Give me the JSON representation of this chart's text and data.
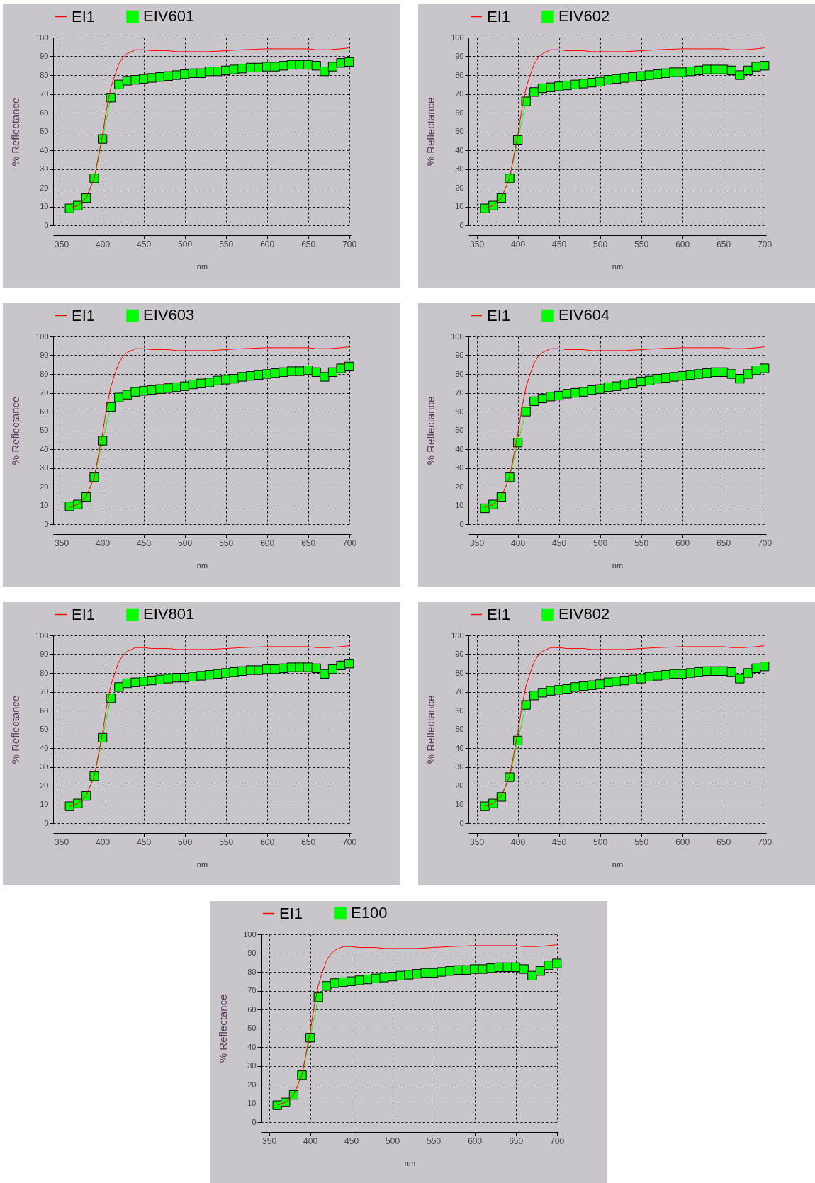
{
  "chart_data": [
    {
      "type": "line",
      "xlabel": "nm",
      "ylabel": "% Reflectance",
      "xlim": [
        340,
        702
      ],
      "xticks": [
        350,
        400,
        450,
        500,
        550,
        600,
        650,
        700
      ],
      "ylim": [
        0,
        100
      ],
      "yticks": [
        0,
        10,
        20,
        30,
        40,
        50,
        60,
        70,
        80,
        90,
        100
      ],
      "grid": true,
      "legend": "top",
      "x": [
        360,
        370,
        380,
        390,
        400,
        410,
        420,
        430,
        440,
        450,
        460,
        470,
        480,
        490,
        500,
        510,
        520,
        530,
        540,
        550,
        560,
        570,
        580,
        590,
        600,
        610,
        620,
        630,
        640,
        650,
        660,
        670,
        680,
        690,
        700
      ],
      "series": [
        {
          "name": "EI1",
          "color": "#ff0000",
          "marker": "none",
          "x": [
            360,
            370,
            380,
            390,
            400,
            405,
            410,
            415,
            420,
            425,
            430,
            440,
            450,
            460,
            480,
            490,
            500,
            530,
            550,
            570,
            600,
            650,
            660,
            675,
            690,
            700
          ],
          "values": [
            9,
            10.5,
            14.5,
            25,
            48,
            62,
            73,
            80,
            86,
            89.5,
            91.5,
            93.5,
            93.5,
            93,
            93,
            92.5,
            92.5,
            92.5,
            93,
            93.5,
            94,
            94,
            93.5,
            93.5,
            94,
            94.5
          ]
        },
        {
          "name": "EIV601",
          "color": "#00ff00",
          "marker": "square",
          "values": [
            9,
            10.5,
            14.5,
            25,
            46,
            68,
            75,
            77,
            77.5,
            78,
            78.5,
            79,
            79.5,
            80,
            80.5,
            81,
            81,
            82,
            82,
            82.5,
            83,
            83.5,
            84,
            84,
            84.5,
            84.5,
            85,
            85.5,
            85.5,
            85.5,
            85,
            82,
            84.5,
            86.5,
            87
          ]
        }
      ]
    },
    {
      "type": "line",
      "xlabel": "nm",
      "ylabel": "% Reflectance",
      "xlim": [
        340,
        702
      ],
      "xticks": [
        350,
        400,
        450,
        500,
        550,
        600,
        650,
        700
      ],
      "ylim": [
        0,
        100
      ],
      "yticks": [
        0,
        10,
        20,
        30,
        40,
        50,
        60,
        70,
        80,
        90,
        100
      ],
      "grid": true,
      "legend": "top",
      "x": [
        360,
        370,
        380,
        390,
        400,
        410,
        420,
        430,
        440,
        450,
        460,
        470,
        480,
        490,
        500,
        510,
        520,
        530,
        540,
        550,
        560,
        570,
        580,
        590,
        600,
        610,
        620,
        630,
        640,
        650,
        660,
        670,
        680,
        690,
        700
      ],
      "series": [
        {
          "name": "EI1",
          "color": "#ff0000",
          "marker": "none",
          "x": [
            360,
            370,
            380,
            390,
            400,
            405,
            410,
            415,
            420,
            425,
            430,
            440,
            450,
            460,
            480,
            490,
            500,
            530,
            550,
            570,
            600,
            650,
            660,
            675,
            690,
            700
          ],
          "values": [
            9,
            10.5,
            14.5,
            25,
            48,
            62,
            73,
            80,
            86,
            89.5,
            91.5,
            93.5,
            93.5,
            93,
            93,
            92.5,
            92.5,
            92.5,
            93,
            93.5,
            94,
            94,
            93.5,
            93.5,
            94,
            94.5
          ]
        },
        {
          "name": "EIV602",
          "color": "#00ff00",
          "marker": "square",
          "values": [
            9,
            10.5,
            14.5,
            25,
            45.5,
            66,
            71,
            73,
            73.5,
            74,
            74.5,
            75,
            75.5,
            76,
            76.5,
            77.5,
            78,
            78.5,
            79,
            79.5,
            80,
            80.5,
            81,
            81.5,
            81.5,
            82,
            82.5,
            83,
            83,
            83,
            82.5,
            80,
            82.5,
            84.5,
            85
          ]
        }
      ]
    },
    {
      "type": "line",
      "xlabel": "nm",
      "ylabel": "% Reflectance",
      "xlim": [
        340,
        702
      ],
      "xticks": [
        350,
        400,
        450,
        500,
        550,
        600,
        650,
        700
      ],
      "ylim": [
        0,
        100
      ],
      "yticks": [
        0,
        10,
        20,
        30,
        40,
        50,
        60,
        70,
        80,
        90,
        100
      ],
      "grid": true,
      "legend": "top",
      "x": [
        360,
        370,
        380,
        390,
        400,
        410,
        420,
        430,
        440,
        450,
        460,
        470,
        480,
        490,
        500,
        510,
        520,
        530,
        540,
        550,
        560,
        570,
        580,
        590,
        600,
        610,
        620,
        630,
        640,
        650,
        660,
        670,
        680,
        690,
        700
      ],
      "series": [
        {
          "name": "EI1",
          "color": "#ff0000",
          "marker": "none",
          "x": [
            360,
            370,
            380,
            390,
            400,
            405,
            410,
            415,
            420,
            425,
            430,
            440,
            450,
            460,
            480,
            490,
            500,
            530,
            550,
            570,
            600,
            650,
            660,
            675,
            690,
            700
          ],
          "values": [
            9,
            10.5,
            14.5,
            25,
            48,
            62,
            73,
            80,
            86,
            89.5,
            91.5,
            93.5,
            93.5,
            93,
            93,
            92.5,
            92.5,
            92.5,
            93,
            93.5,
            94,
            94,
            93.5,
            93.5,
            94,
            94.5
          ]
        },
        {
          "name": "EIV603",
          "color": "#00ff00",
          "marker": "square",
          "values": [
            9.5,
            10.5,
            14.5,
            25,
            44.5,
            62.5,
            67.5,
            69,
            70.5,
            71,
            71.5,
            72,
            72.5,
            73,
            73.5,
            74.5,
            75,
            75.5,
            76.5,
            77,
            77.5,
            78.5,
            79,
            79.5,
            80,
            80.5,
            81,
            81.5,
            81.5,
            82,
            81,
            78.5,
            81,
            83,
            84
          ]
        }
      ]
    },
    {
      "type": "line",
      "xlabel": "nm",
      "ylabel": "% Reflectance",
      "xlim": [
        340,
        702
      ],
      "xticks": [
        350,
        400,
        450,
        500,
        550,
        600,
        650,
        700
      ],
      "ylim": [
        0,
        100
      ],
      "yticks": [
        0,
        10,
        20,
        30,
        40,
        50,
        60,
        70,
        80,
        90,
        100
      ],
      "grid": true,
      "legend": "top",
      "x": [
        360,
        370,
        380,
        390,
        400,
        410,
        420,
        430,
        440,
        450,
        460,
        470,
        480,
        490,
        500,
        510,
        520,
        530,
        540,
        550,
        560,
        570,
        580,
        590,
        600,
        610,
        620,
        630,
        640,
        650,
        660,
        670,
        680,
        690,
        700
      ],
      "series": [
        {
          "name": "EI1",
          "color": "#ff0000",
          "marker": "none",
          "x": [
            360,
            370,
            380,
            390,
            400,
            405,
            410,
            415,
            420,
            425,
            430,
            440,
            450,
            460,
            480,
            490,
            500,
            530,
            550,
            570,
            600,
            650,
            660,
            675,
            690,
            700
          ],
          "values": [
            9,
            10.5,
            14.5,
            25,
            48,
            62,
            73,
            80,
            86,
            89.5,
            91.5,
            93.5,
            93.5,
            93,
            93,
            92.5,
            92.5,
            92.5,
            93,
            93.5,
            94,
            94,
            93.5,
            93.5,
            94,
            94.5
          ]
        },
        {
          "name": "EIV604",
          "color": "#00ff00",
          "marker": "square",
          "values": [
            8.5,
            10.5,
            14.5,
            25,
            43.5,
            60,
            65.5,
            67,
            68,
            68.5,
            69.5,
            70,
            70.5,
            71.5,
            72,
            73,
            73.5,
            74.5,
            75,
            76,
            76.5,
            77.5,
            78,
            78.5,
            79,
            79.5,
            80,
            80.5,
            81,
            81,
            80,
            77.5,
            80,
            82,
            83
          ]
        }
      ]
    },
    {
      "type": "line",
      "xlabel": "nm",
      "ylabel": "% Reflectance",
      "xlim": [
        340,
        702
      ],
      "xticks": [
        350,
        400,
        450,
        500,
        550,
        600,
        650,
        700
      ],
      "ylim": [
        0,
        100
      ],
      "yticks": [
        0,
        10,
        20,
        30,
        40,
        50,
        60,
        70,
        80,
        90,
        100
      ],
      "grid": true,
      "legend": "top",
      "x": [
        360,
        370,
        380,
        390,
        400,
        410,
        420,
        430,
        440,
        450,
        460,
        470,
        480,
        490,
        500,
        510,
        520,
        530,
        540,
        550,
        560,
        570,
        580,
        590,
        600,
        610,
        620,
        630,
        640,
        650,
        660,
        670,
        680,
        690,
        700
      ],
      "series": [
        {
          "name": "EI1",
          "color": "#ff0000",
          "marker": "none",
          "x": [
            360,
            370,
            380,
            390,
            400,
            405,
            410,
            415,
            420,
            425,
            430,
            440,
            450,
            460,
            480,
            490,
            500,
            530,
            550,
            570,
            600,
            650,
            660,
            675,
            690,
            700
          ],
          "values": [
            9,
            10.5,
            14.5,
            25,
            48,
            62,
            73,
            80,
            86,
            89.5,
            91.5,
            93.5,
            93.5,
            93,
            93,
            92.5,
            92.5,
            92.5,
            93,
            93.5,
            94,
            94,
            93.5,
            93.5,
            94,
            94.5
          ]
        },
        {
          "name": "EIV801",
          "color": "#00ff00",
          "marker": "square",
          "values": [
            9,
            10.5,
            14.5,
            25,
            45.5,
            66.5,
            72.5,
            74.5,
            75,
            75.5,
            76,
            76.5,
            77,
            77.5,
            77.5,
            78,
            78.5,
            79,
            79.5,
            80,
            80.5,
            81,
            81.5,
            81.5,
            82,
            82,
            82.5,
            83,
            83,
            83,
            82.5,
            79.5,
            82,
            84,
            85
          ]
        }
      ]
    },
    {
      "type": "line",
      "xlabel": "nm",
      "ylabel": "% Reflectance",
      "xlim": [
        340,
        702
      ],
      "xticks": [
        350,
        400,
        450,
        500,
        550,
        600,
        650,
        700
      ],
      "ylim": [
        0,
        100
      ],
      "yticks": [
        0,
        10,
        20,
        30,
        40,
        50,
        60,
        70,
        80,
        90,
        100
      ],
      "grid": true,
      "legend": "top",
      "x": [
        360,
        370,
        380,
        390,
        400,
        410,
        420,
        430,
        440,
        450,
        460,
        470,
        480,
        490,
        500,
        510,
        520,
        530,
        540,
        550,
        560,
        570,
        580,
        590,
        600,
        610,
        620,
        630,
        640,
        650,
        660,
        670,
        680,
        690,
        700
      ],
      "series": [
        {
          "name": "EI1",
          "color": "#ff0000",
          "marker": "none",
          "x": [
            360,
            370,
            380,
            390,
            400,
            405,
            410,
            415,
            420,
            425,
            430,
            440,
            450,
            460,
            480,
            490,
            500,
            530,
            550,
            570,
            600,
            650,
            660,
            675,
            690,
            700
          ],
          "values": [
            9,
            10.5,
            14.5,
            25,
            48,
            62,
            73,
            80,
            86,
            89.5,
            91.5,
            93.5,
            93.5,
            93,
            93,
            92.5,
            92.5,
            92.5,
            93,
            93.5,
            94,
            94,
            93.5,
            93.5,
            94,
            94.5
          ]
        },
        {
          "name": "EIV802",
          "color": "#00ff00",
          "marker": "square",
          "values": [
            9,
            10.5,
            14,
            24.5,
            44,
            63,
            68,
            69.5,
            70.5,
            71,
            71.5,
            72.5,
            73,
            73.5,
            74,
            75,
            75.5,
            76,
            76.5,
            77,
            78,
            78.5,
            79,
            79.5,
            79.5,
            80,
            80.5,
            81,
            81,
            81,
            80.5,
            77,
            80,
            82.5,
            83.5
          ]
        }
      ]
    },
    {
      "type": "line",
      "xlabel": "nm",
      "ylabel": "% Reflectance",
      "xlim": [
        340,
        702
      ],
      "xticks": [
        350,
        400,
        450,
        500,
        550,
        600,
        650,
        700
      ],
      "ylim": [
        0,
        100
      ],
      "yticks": [
        0,
        10,
        20,
        30,
        40,
        50,
        60,
        70,
        80,
        90,
        100
      ],
      "grid": true,
      "legend": "top",
      "x": [
        360,
        370,
        380,
        390,
        400,
        410,
        420,
        430,
        440,
        450,
        460,
        470,
        480,
        490,
        500,
        510,
        520,
        530,
        540,
        550,
        560,
        570,
        580,
        590,
        600,
        610,
        620,
        630,
        640,
        650,
        660,
        670,
        680,
        690,
        700
      ],
      "series": [
        {
          "name": "EI1",
          "color": "#ff0000",
          "marker": "none",
          "x": [
            360,
            370,
            380,
            390,
            400,
            405,
            410,
            415,
            420,
            425,
            430,
            440,
            450,
            460,
            480,
            490,
            500,
            530,
            550,
            570,
            600,
            650,
            660,
            675,
            690,
            700
          ],
          "values": [
            9,
            10.5,
            14.5,
            25,
            48,
            62,
            73,
            80,
            86,
            89.5,
            91.5,
            93.5,
            93.5,
            93,
            93,
            92.5,
            92.5,
            92.5,
            93,
            93.5,
            94,
            94,
            93.5,
            93.5,
            94,
            94.5
          ]
        },
        {
          "name": "E100",
          "color": "#00ff00",
          "marker": "square",
          "values": [
            9,
            10.5,
            14.5,
            25,
            45,
            66.5,
            72.5,
            74,
            74.5,
            75,
            75.5,
            76,
            76.5,
            77,
            77.5,
            78,
            78.5,
            79,
            79.5,
            79.5,
            80,
            80.5,
            81,
            81,
            81.5,
            81.5,
            82,
            82.5,
            82.5,
            82.5,
            81.5,
            78,
            80.5,
            83.5,
            84.5
          ]
        }
      ]
    }
  ]
}
